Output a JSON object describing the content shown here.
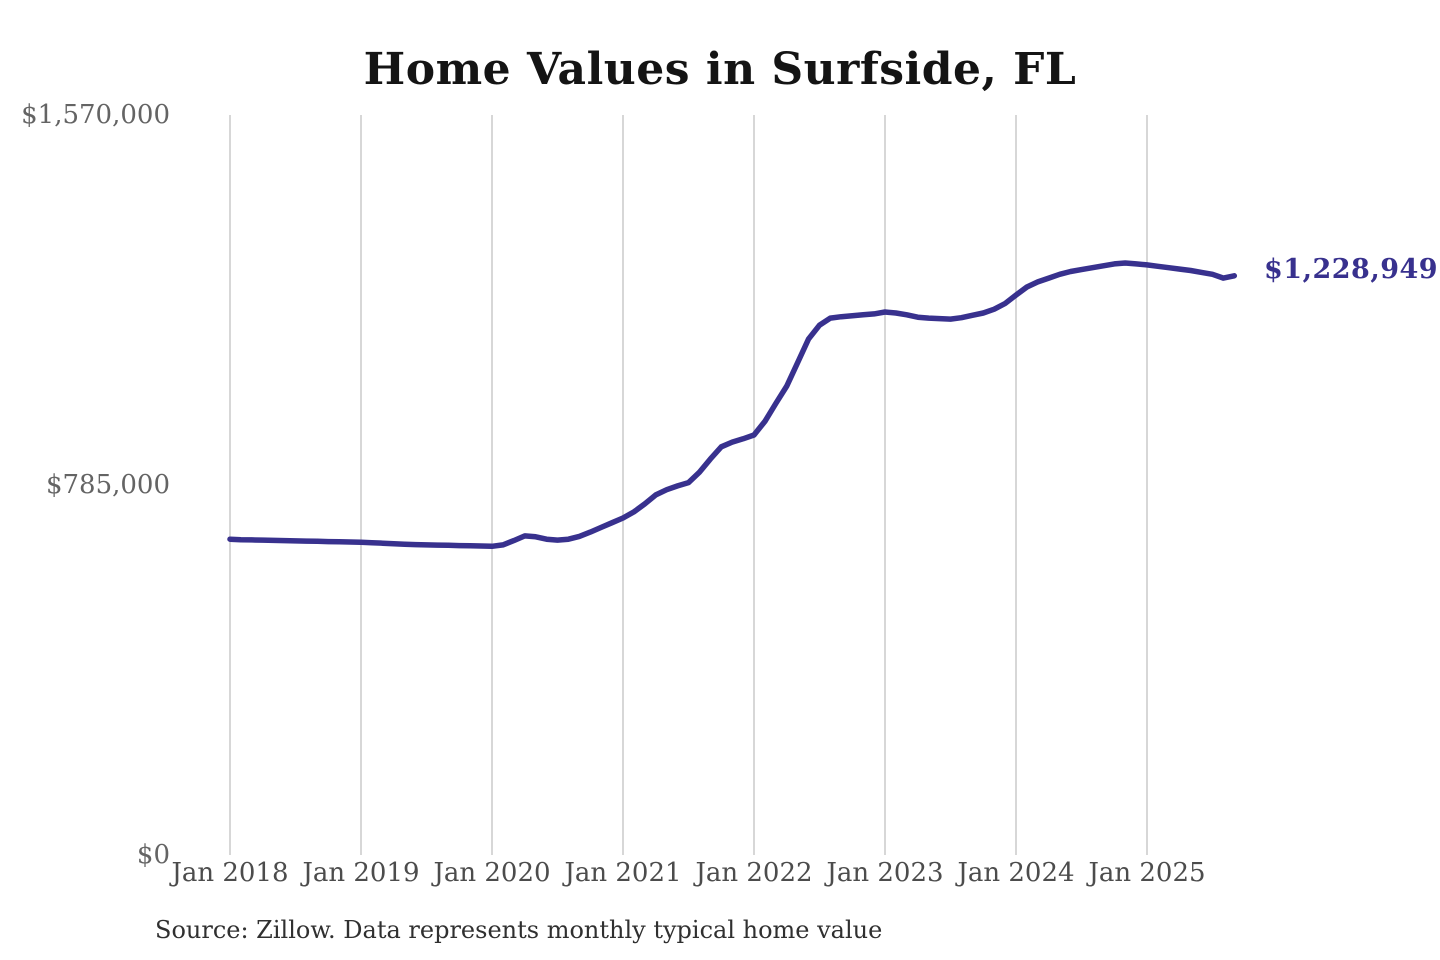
{
  "page": {
    "title": "Home Values in Surfside, FL",
    "source_note": "Source: Zillow. Data represents monthly typical home value"
  },
  "end_label": "$1,228,949",
  "colors": {
    "line": "#38318e",
    "end_label_text": "#38318e",
    "grid": "#c6c6c6",
    "y_tick_text": "#646464",
    "x_tick_text": "#4c4c4c",
    "title_text": "#141414",
    "source_text": "#303030",
    "background": "#ffffff"
  },
  "y_axis": {
    "ticks": [
      {
        "label": "$1,570,000",
        "value": 1570000
      },
      {
        "label": "$785,000",
        "value": 785000
      },
      {
        "label": "$0",
        "value": 0
      }
    ]
  },
  "x_axis": {
    "ticks": [
      "Jan 2018",
      "Jan 2019",
      "Jan 2020",
      "Jan 2021",
      "Jan 2022",
      "Jan 2023",
      "Jan 2024",
      "Jan 2025"
    ],
    "months_per_tick": 12
  },
  "chart_data": {
    "type": "line",
    "title": "Home Values in Surfside, FL",
    "series_name": "Monthly typical home value (Zillow)",
    "ylim": [
      0,
      1570000
    ],
    "grid": "vertical-only",
    "legend": "none",
    "end_value": 1228949,
    "end_value_label": "$1,228,949",
    "x": [
      "2018-01",
      "2018-02",
      "2018-03",
      "2018-04",
      "2018-05",
      "2018-06",
      "2018-07",
      "2018-08",
      "2018-09",
      "2018-10",
      "2018-11",
      "2018-12",
      "2019-01",
      "2019-02",
      "2019-03",
      "2019-04",
      "2019-05",
      "2019-06",
      "2019-07",
      "2019-08",
      "2019-09",
      "2019-10",
      "2019-11",
      "2019-12",
      "2020-01",
      "2020-02",
      "2020-03",
      "2020-04",
      "2020-05",
      "2020-06",
      "2020-07",
      "2020-08",
      "2020-09",
      "2020-10",
      "2020-11",
      "2020-12",
      "2021-01",
      "2021-02",
      "2021-03",
      "2021-04",
      "2021-05",
      "2021-06",
      "2021-07",
      "2021-08",
      "2021-09",
      "2021-10",
      "2021-11",
      "2021-12",
      "2022-01",
      "2022-02",
      "2022-03",
      "2022-04",
      "2022-05",
      "2022-06",
      "2022-07",
      "2022-08",
      "2022-09",
      "2022-10",
      "2022-11",
      "2022-12",
      "2023-01",
      "2023-02",
      "2023-03",
      "2023-04",
      "2023-05",
      "2023-06",
      "2023-07",
      "2023-08",
      "2023-09",
      "2023-10",
      "2023-11",
      "2023-12",
      "2024-01",
      "2024-02",
      "2024-03",
      "2024-04",
      "2024-05",
      "2024-06",
      "2024-07",
      "2024-08",
      "2024-09",
      "2024-10",
      "2024-11",
      "2024-12",
      "2025-01",
      "2025-02",
      "2025-03",
      "2025-04",
      "2025-05",
      "2025-06",
      "2025-07",
      "2025-08",
      "2025-09"
    ],
    "values": [
      670000,
      669000,
      668500,
      668000,
      667500,
      667000,
      666500,
      666000,
      665500,
      665000,
      664500,
      664000,
      663500,
      662500,
      661500,
      660500,
      659500,
      658500,
      658000,
      657500,
      657000,
      656500,
      656000,
      655500,
      655000,
      658000,
      667000,
      677000,
      675000,
      670000,
      668000,
      670000,
      676000,
      685000,
      695000,
      705000,
      715000,
      728000,
      745000,
      764000,
      775000,
      783000,
      790000,
      812000,
      840000,
      866000,
      876000,
      883000,
      891000,
      920000,
      958000,
      995000,
      1045000,
      1095000,
      1124000,
      1139000,
      1142000,
      1144000,
      1146000,
      1148000,
      1152000,
      1150000,
      1146000,
      1141000,
      1139000,
      1138000,
      1137000,
      1140000,
      1145000,
      1150000,
      1158000,
      1170000,
      1188000,
      1205000,
      1216000,
      1224000,
      1232000,
      1238000,
      1242000,
      1246000,
      1250000,
      1254000,
      1256000,
      1254000,
      1252000,
      1249000,
      1246000,
      1243000,
      1240000,
      1236000,
      1232000,
      1224000,
      1228949
    ]
  }
}
